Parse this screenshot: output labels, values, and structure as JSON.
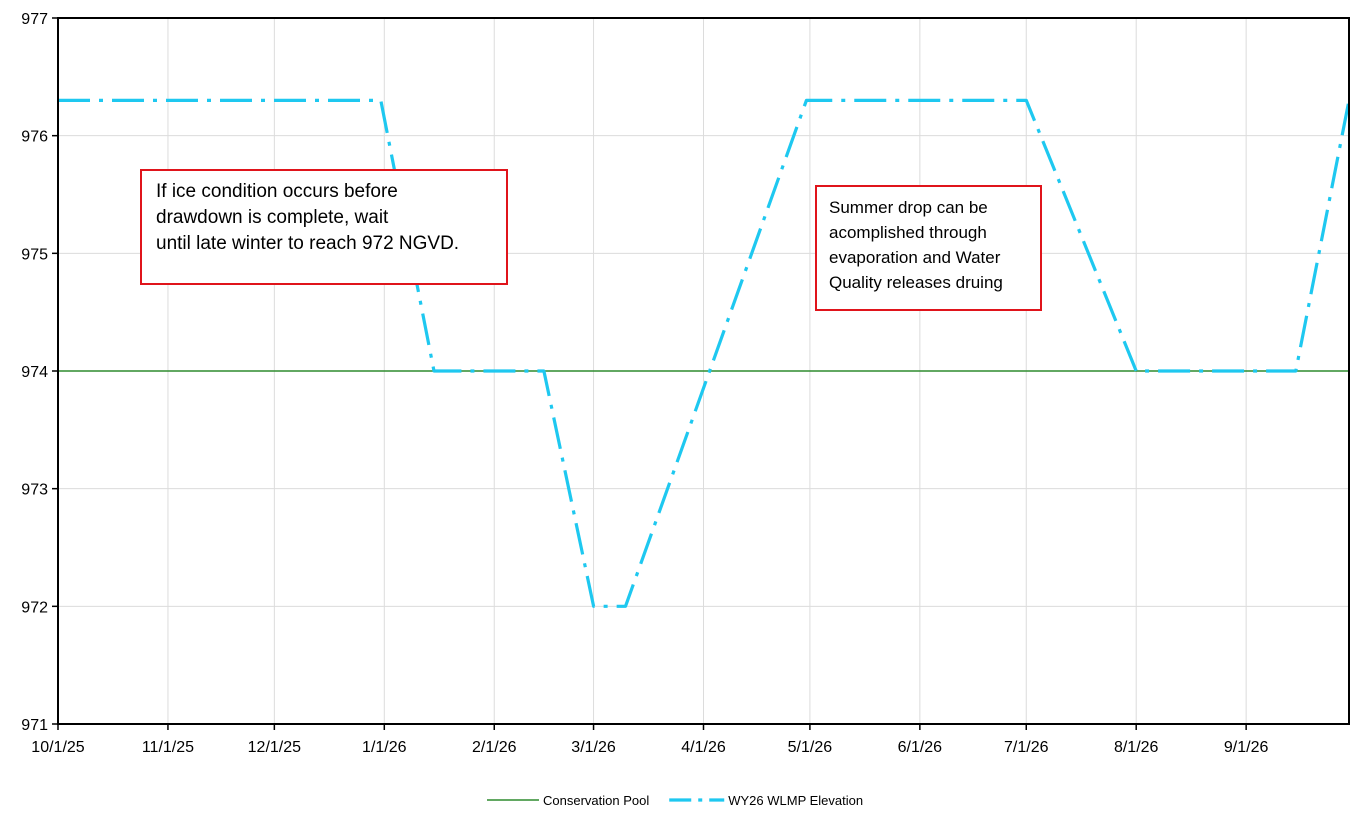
{
  "chart_data": {
    "type": "line",
    "title": "",
    "xlabel": "",
    "ylabel": "",
    "x_range": [
      "2025-10-01",
      "2026-09-30"
    ],
    "ylim": [
      971,
      977
    ],
    "y_ticks": [
      971,
      972,
      973,
      974,
      975,
      976,
      977
    ],
    "x_ticks": [
      {
        "date": "2025-10-01",
        "label": "10/1/25"
      },
      {
        "date": "2025-11-01",
        "label": "11/1/25"
      },
      {
        "date": "2025-12-01",
        "label": "12/1/25"
      },
      {
        "date": "2026-01-01",
        "label": "1/1/26"
      },
      {
        "date": "2026-02-01",
        "label": "2/1/26"
      },
      {
        "date": "2026-03-01",
        "label": "3/1/26"
      },
      {
        "date": "2026-04-01",
        "label": "4/1/26"
      },
      {
        "date": "2026-05-01",
        "label": "5/1/26"
      },
      {
        "date": "2026-06-01",
        "label": "6/1/26"
      },
      {
        "date": "2026-07-01",
        "label": "7/1/26"
      },
      {
        "date": "2026-08-01",
        "label": "8/1/26"
      },
      {
        "date": "2026-09-01",
        "label": "9/1/26"
      }
    ],
    "grid": true,
    "legend_position": "bottom-center",
    "series": [
      {
        "name": "Conservation Pool",
        "color": "#2e8b2e",
        "style": "solid",
        "points": [
          {
            "x": "2025-10-01",
            "y": 974
          },
          {
            "x": "2026-09-30",
            "y": 974
          }
        ]
      },
      {
        "name": "WY26 WLMP Elevation",
        "color": "#1ec8f0",
        "style": "dash-dot",
        "points": [
          {
            "x": "2025-10-01",
            "y": 976.3
          },
          {
            "x": "2025-12-31",
            "y": 976.3
          },
          {
            "x": "2026-01-15",
            "y": 974
          },
          {
            "x": "2026-02-15",
            "y": 974
          },
          {
            "x": "2026-03-01",
            "y": 972
          },
          {
            "x": "2026-03-10",
            "y": 972
          },
          {
            "x": "2026-04-30",
            "y": 976.3
          },
          {
            "x": "2026-07-01",
            "y": 976.3
          },
          {
            "x": "2026-08-01",
            "y": 974
          },
          {
            "x": "2026-09-15",
            "y": 974
          },
          {
            "x": "2026-09-30",
            "y": 976.3
          }
        ]
      }
    ],
    "annotations": [
      {
        "id": "ann-1",
        "lines": [
          "If ice condition occurs before",
          "drawdown is complete, wait",
          "until late winter to reach 972 NGVD."
        ]
      },
      {
        "id": "ann-2",
        "lines": [
          "Summer drop can be",
          "acomplished through",
          "evaporation and Water",
          "Quality releases druing"
        ]
      }
    ]
  }
}
